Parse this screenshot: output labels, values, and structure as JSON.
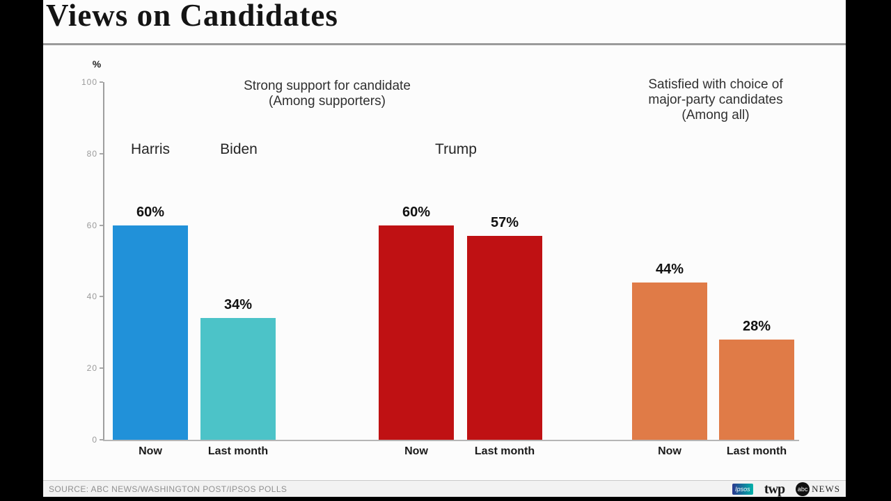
{
  "header": {
    "title": "Views on Candidates"
  },
  "chart_data": {
    "type": "bar",
    "title": "Views on Candidates",
    "ylabel": "%",
    "ylim": [
      0,
      100
    ],
    "yticks": [
      0,
      20,
      40,
      60,
      80,
      100
    ],
    "grid": false,
    "legend": "none",
    "groups": [
      {
        "header_lines": [
          "Strong support for candidate",
          "(Among supporters)"
        ],
        "subgroups": [
          {
            "candidate": "Harris",
            "bars": [
              {
                "x_label": "Now",
                "value": 60,
                "value_label": "60%",
                "color": "#2191d9"
              }
            ]
          },
          {
            "candidate": "Biden",
            "bars": [
              {
                "x_label": "Last month",
                "value": 34,
                "value_label": "34%",
                "color": "#4cc3c8"
              }
            ]
          },
          {
            "candidate": "Trump",
            "bars": [
              {
                "x_label": "Now",
                "value": 60,
                "value_label": "60%",
                "color": "#bf1113"
              },
              {
                "x_label": "Last month",
                "value": 57,
                "value_label": "57%",
                "color": "#bf1113"
              }
            ]
          }
        ]
      },
      {
        "header_lines": [
          "Satisfied with choice of",
          "major-party candidates",
          "(Among all)"
        ],
        "subgroups": [
          {
            "candidate": "",
            "bars": [
              {
                "x_label": "Now",
                "value": 44,
                "value_label": "44%",
                "color": "#e07b47"
              },
              {
                "x_label": "Last month",
                "value": 28,
                "value_label": "28%",
                "color": "#e07b47"
              }
            ]
          }
        ]
      }
    ]
  },
  "footer": {
    "source": "SOURCE: ABC NEWS/WASHINGTON POST/IPSOS POLLS",
    "logos": {
      "ipsos": "Ipsos",
      "twp": "twp",
      "abc_circle": "abc",
      "abc_news": "NEWS"
    }
  }
}
